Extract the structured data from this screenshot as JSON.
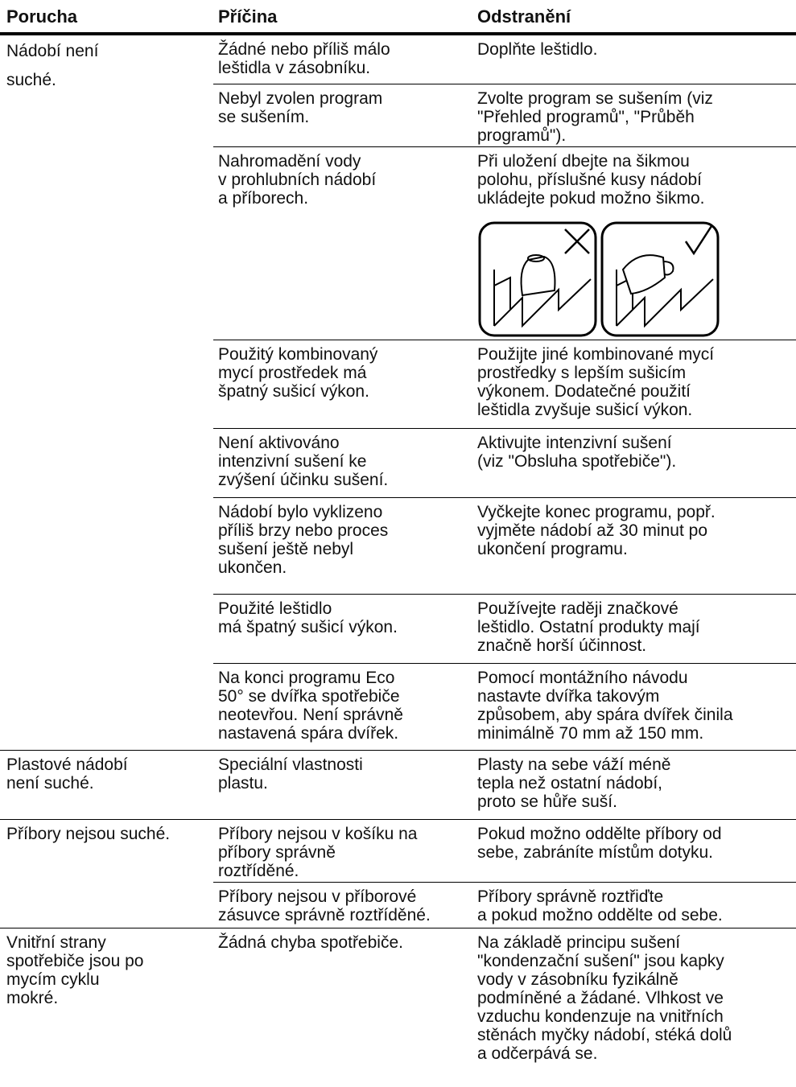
{
  "header": {
    "fault": "Porucha",
    "cause": "Příčina",
    "remedy": "Odstranění"
  },
  "groups": [
    {
      "fault": "Nádobí není\nsuché.",
      "items": [
        {
          "cause": "Žádné nebo příliš málo\nleštidla v zásobníku.",
          "remedy": "Doplňte leštidlo."
        },
        {
          "cause": "Nebyl zvolen program\nse sušením.",
          "remedy": "Zvolte program se sušením (viz\n\"Přehled programů\", \"Průběh\nprogramů\")."
        },
        {
          "cause": "Nahromadění vody\nv prohlubních nádobí\na příborech.",
          "remedy": "Při uložení dbejte na šikmou\npolohu, příslušné kusy nádobí\nukládejte pokud možno šikmo."
        },
        {
          "cause": "Použitý kombinovaný\nmycí prostředek má\nšpatný sušicí výkon.",
          "remedy": "Použijte jiné kombinované mycí\nprostředky s lepším sušicím\nvýkonem. Dodatečné použití\nleštidla zvyšuje sušicí výkon."
        },
        {
          "cause": "Není aktivováno\nintenzivní sušení ke\nzvýšení účinku sušení.",
          "remedy": "Aktivujte intenzivní sušení\n(viz \"Obsluha spotřebiče\")."
        },
        {
          "cause": "Nádobí bylo vyklizeno\npříliš brzy nebo proces\nsušení ještě nebyl\nukončen.",
          "remedy": "Vyčkejte konec programu, popř.\nvyjměte nádobí až 30 minut po\nukončení programu."
        },
        {
          "cause": "Použité leštidlo\nmá špatný sušicí výkon.",
          "remedy": "Používejte raději značkové\nleštidlo. Ostatní produkty mají\nznačně horší účinnost."
        },
        {
          "cause": "Na konci programu Eco\n50° se dvířka spotřebiče\nneotevřou. Není správně\nnastavená spára dvířek.",
          "remedy": "Pomocí montážního návodu\nnastavte dvířka takovým\nzpůsobem, aby spára dvířek činila\nminimálně 70 mm až 150 mm."
        }
      ]
    },
    {
      "fault": "Plastové nádobí\nnení suché.",
      "items": [
        {
          "cause": "Speciální vlastnosti\nplastu.",
          "remedy": "Plasty na sebe váží méně\ntepla než ostatní nádobí,\nproto se hůře suší."
        }
      ]
    },
    {
      "fault": "Příbory nejsou suché.",
      "items": [
        {
          "cause": "Příbory nejsou v košíku na\npříbory správně\nroztříděné.",
          "remedy": "Pokud možno oddělte příbory od\nsebe, zabráníte místům dotyku."
        },
        {
          "cause": "Příbory nejsou v příborové\nzásuvce správně roztříděné.",
          "remedy": "Příbory správně roztřiďte\na pokud možno oddělte od sebe."
        }
      ]
    },
    {
      "fault": "Vnitřní strany\nspotřebiče jsou po\nmycím cyklu\nmokré.",
      "items": [
        {
          "cause": "Žádná chyba spotřebiče.",
          "remedy": "Na základě principu sušení\n\"kondenzační sušení\" jsou kapky\nvody v zásobníku fyzikálně\npodmíněné a žádané. Vlhkost ve\nvzduchu kondenzuje na vnitřních\nstěnách myčky nádobí, stéká dolů\na odčerpává se."
        }
      ]
    }
  ]
}
